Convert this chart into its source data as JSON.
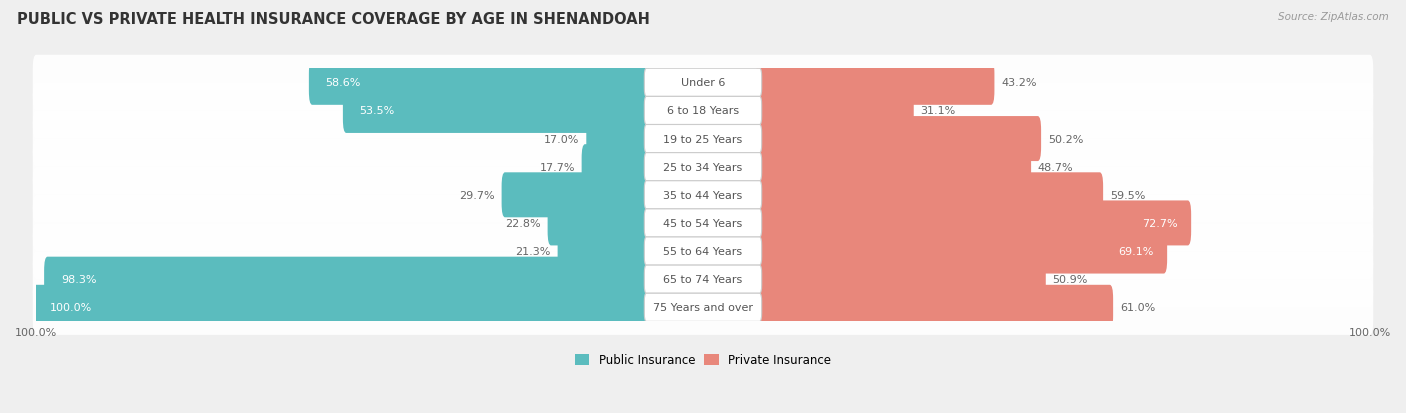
{
  "title": "PUBLIC VS PRIVATE HEALTH INSURANCE COVERAGE BY AGE IN SHENANDOAH",
  "source": "Source: ZipAtlas.com",
  "categories": [
    "Under 6",
    "6 to 18 Years",
    "19 to 25 Years",
    "25 to 34 Years",
    "35 to 44 Years",
    "45 to 54 Years",
    "55 to 64 Years",
    "65 to 74 Years",
    "75 Years and over"
  ],
  "public_values": [
    58.6,
    53.5,
    17.0,
    17.7,
    29.7,
    22.8,
    21.3,
    98.3,
    100.0
  ],
  "private_values": [
    43.2,
    31.1,
    50.2,
    48.7,
    59.5,
    72.7,
    69.1,
    50.9,
    61.0
  ],
  "public_color": "#5bbcbe",
  "private_color": "#e8877b",
  "bg_color": "#efefef",
  "row_bg_color": "#f8f8f8",
  "title_fontsize": 10.5,
  "label_fontsize": 8.0,
  "value_fontsize": 8.0,
  "max_value": 100.0,
  "legend_labels": [
    "Public Insurance",
    "Private Insurance"
  ],
  "pub_value_white_threshold": 50.0,
  "priv_value_white_threshold": 62.0
}
